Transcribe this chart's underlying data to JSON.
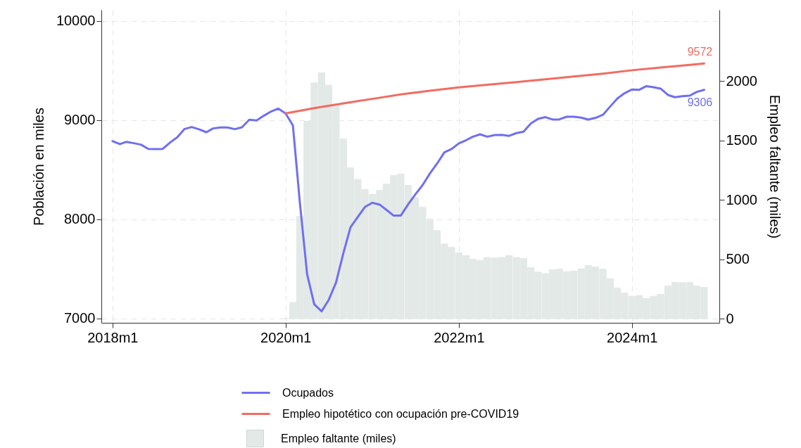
{
  "chart_data": {
    "type": "line",
    "ylabel": "Población en miles",
    "y2label": "Empleo faltante (miles)",
    "x": [
      "2018-01",
      "2018-02",
      "2018-03",
      "2018-04",
      "2018-05",
      "2018-06",
      "2018-07",
      "2018-08",
      "2018-09",
      "2018-10",
      "2018-11",
      "2018-12",
      "2019-01",
      "2019-02",
      "2019-03",
      "2019-04",
      "2019-05",
      "2019-06",
      "2019-07",
      "2019-08",
      "2019-09",
      "2019-10",
      "2019-11",
      "2019-12",
      "2020-01",
      "2020-02",
      "2020-03",
      "2020-04",
      "2020-05",
      "2020-06",
      "2020-07",
      "2020-08",
      "2020-09",
      "2020-10",
      "2020-11",
      "2020-12",
      "2021-01",
      "2021-02",
      "2021-03",
      "2021-04",
      "2021-05",
      "2021-06",
      "2021-07",
      "2021-08",
      "2021-09",
      "2021-10",
      "2021-11",
      "2021-12",
      "2022-01",
      "2022-02",
      "2022-03",
      "2022-04",
      "2022-05",
      "2022-06",
      "2022-07",
      "2022-08",
      "2022-09",
      "2022-10",
      "2022-11",
      "2022-12",
      "2023-01",
      "2023-02",
      "2023-03",
      "2023-04",
      "2023-05",
      "2023-06",
      "2023-07",
      "2023-08",
      "2023-09",
      "2023-10",
      "2023-11",
      "2023-12",
      "2024-01",
      "2024-02",
      "2024-03",
      "2024-04",
      "2024-05",
      "2024-06",
      "2024-07",
      "2024-08",
      "2024-09",
      "2024-10",
      "2024-11"
    ],
    "series": [
      {
        "name": "Empleo faltante (miles)",
        "type": "bar",
        "axis": "y2",
        "color": "#e3e9e7",
        "values": [
          null,
          null,
          null,
          null,
          null,
          null,
          null,
          null,
          null,
          null,
          null,
          null,
          null,
          null,
          null,
          null,
          null,
          null,
          null,
          null,
          null,
          null,
          null,
          null,
          0,
          136,
          860,
          1661,
          1984,
          2069,
          1964,
          1797,
          1511,
          1270,
          1172,
          1087,
          1047,
          1079,
          1132,
          1205,
          1217,
          1122,
          1018,
          939,
          836,
          741,
          629,
          599,
          554,
          531,
          501,
          491,
          515,
          511,
          515,
          531,
          515,
          507,
          428,
          392,
          379,
          412,
          418,
          396,
          402,
          418,
          448,
          436,
          416,
          337,
          259,
          215,
          189,
          195,
          170,
          189,
          205,
          274,
          306,
          304,
          306,
          274,
          264
        ]
      },
      {
        "name": "Ocupados",
        "color": "#6f6ff2",
        "values": [
          8789,
          8759,
          8782,
          8768,
          8754,
          8711,
          8709,
          8711,
          8775,
          8827,
          8912,
          8931,
          8908,
          8879,
          8917,
          8927,
          8927,
          8910,
          8929,
          9005,
          8998,
          9045,
          9088,
          9118,
          9069,
          8948,
          8180,
          7447,
          7144,
          7073,
          7187,
          7364,
          7660,
          7920,
          8026,
          8125,
          8168,
          8149,
          8097,
          8038,
          8038,
          8151,
          8250,
          8345,
          8463,
          8562,
          8676,
          8709,
          8766,
          8799,
          8834,
          8858,
          8834,
          8851,
          8853,
          8842,
          8870,
          8884,
          8967,
          9014,
          9031,
          9007,
          9009,
          9035,
          9035,
          9026,
          9007,
          9024,
          9055,
          9137,
          9220,
          9272,
          9310,
          9307,
          9343,
          9333,
          9319,
          9255,
          9232,
          9243,
          9248,
          9286,
          9306
        ]
      },
      {
        "name": "Empleo hipotético con ocupación pre-COVID19",
        "color": "#f26b61",
        "x": [
          "2020-01",
          "2020-05",
          "2020-09",
          "2021-01",
          "2021-05",
          "2021-09",
          "2022-01",
          "2022-05",
          "2022-09",
          "2023-01",
          "2023-05",
          "2023-09",
          "2024-01",
          "2024-05",
          "2024-09",
          "2024-11"
        ],
        "values": [
          9069,
          9122,
          9170,
          9215,
          9260,
          9297,
          9331,
          9357,
          9385,
          9413,
          9441,
          9470,
          9504,
          9532,
          9558,
          9572
        ]
      }
    ],
    "xlim": [
      "2017-11-15",
      "2025-01-04"
    ],
    "xticks": [
      {
        "value": "2018-01",
        "label": "2018m1"
      },
      {
        "value": "2020-01",
        "label": "2020m1"
      },
      {
        "value": "2022-01",
        "label": "2022m1"
      },
      {
        "value": "2024-01",
        "label": "2024m1"
      }
    ],
    "ylim": [
      6957,
      10113
    ],
    "yticks": [
      7000,
      8000,
      9000,
      10000
    ],
    "y2lim": [
      -35,
      2598
    ],
    "y2ticks": [
      0,
      500,
      1000,
      1500,
      2000
    ],
    "annotations": [
      {
        "text": "9572",
        "x": "2024-11",
        "y": 9572
      },
      {
        "text": "9306",
        "x": "2024-11",
        "y": 9306
      }
    ],
    "grid": true,
    "legend": "bottom"
  }
}
